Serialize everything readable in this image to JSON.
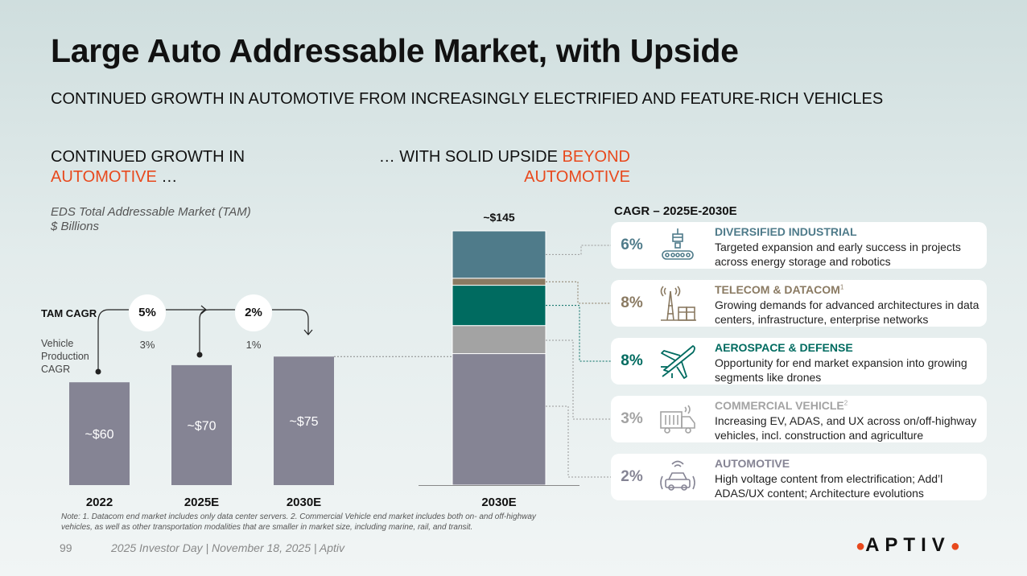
{
  "title": "Large Auto Addressable Market, with Upside",
  "subtitle": "CONTINUED GROWTH IN AUTOMOTIVE FROM INCREASINGLY ELECTRIFIED AND FEATURE-RICH VEHICLES",
  "left_section": {
    "line1": "CONTINUED GROWTH IN",
    "highlight": "AUTOMOTIVE",
    "suffix": " …"
  },
  "right_section": {
    "prefix": "… WITH SOLID UPSIDE ",
    "highlight1": "BEYOND",
    "highlight2": "AUTOMOTIVE"
  },
  "tam_label": {
    "line1": "EDS Total Addressable Market (TAM)",
    "line2": "$ Billions"
  },
  "tam_cagr_label": "TAM CAGR",
  "vehicle_cagr_label": [
    "Vehicle",
    "Production",
    "CAGR"
  ],
  "growth": {
    "tam_cagr": [
      "5%",
      "2%"
    ],
    "vehicle_cagr": [
      "3%",
      "1%"
    ]
  },
  "chart_data": [
    {
      "type": "bar",
      "title": "EDS Total Addressable Market (TAM)",
      "ylabel": "$ Billions",
      "categories": [
        "2022",
        "2025E",
        "2030E"
      ],
      "values": [
        60,
        70,
        75
      ],
      "value_labels": [
        "~$60",
        "~$70",
        "~$75"
      ],
      "ylim": [
        0,
        145
      ]
    },
    {
      "type": "bar",
      "stacked": true,
      "categories": [
        "2030E"
      ],
      "total_label": "~$145",
      "total": 145,
      "series": [
        {
          "name": "Automotive",
          "values": [
            75
          ],
          "color": "#858494"
        },
        {
          "name": "Commercial Vehicle",
          "values": [
            16
          ],
          "color": "#a3a3a3"
        },
        {
          "name": "Aerospace & Defense",
          "values": [
            23
          ],
          "color": "#006b60"
        },
        {
          "name": "Telecom & Datacom",
          "values": [
            4
          ],
          "color": "#8a7a62"
        },
        {
          "name": "Diversified Industrial",
          "values": [
            27
          ],
          "color": "#4f7b8a"
        }
      ]
    }
  ],
  "cagr_header": "CAGR – 2025E-2030E",
  "segments": [
    {
      "name": "DIVERSIFIED INDUSTRIAL",
      "sup": "",
      "pct": "6%",
      "color": "#4f7b8a",
      "icon": "conveyor-robot-icon",
      "desc": "Targeted expansion and early success in projects across energy storage and robotics"
    },
    {
      "name": "TELECOM & DATACOM",
      "sup": "1",
      "pct": "8%",
      "color": "#8a7a62",
      "icon": "cell-tower-icon",
      "desc": "Growing demands for advanced architectures in data centers, infrastructure, enterprise networks"
    },
    {
      "name": "AEROSPACE & DEFENSE",
      "sup": "",
      "pct": "8%",
      "color": "#006b60",
      "icon": "airplane-icon",
      "desc": "Opportunity for end market expansion into growing segments like drones"
    },
    {
      "name": "COMMERCIAL VEHICLE",
      "sup": "2",
      "pct": "3%",
      "color": "#a3a3a3",
      "icon": "truck-icon",
      "desc": "Increasing EV, ADAS, and UX across on/off-highway vehicles, incl. construction and agriculture"
    },
    {
      "name": "AUTOMOTIVE",
      "sup": "",
      "pct": "2%",
      "color": "#858494",
      "icon": "connected-car-icon",
      "desc": "High voltage content from electrification; Add’l ADAS/UX content; Architecture evolutions"
    }
  ],
  "note": "Note: 1. Datacom end market includes only data center servers. 2. Commercial Vehicle end market includes both on- and off-highway vehicles, as well as other transportation modalities that are smaller in market size, including marine, rail, and transit.",
  "page_number": "99",
  "footer": "2025 Investor Day | November 18, 2025 | Aptiv",
  "logo": "APTIV",
  "colors": {
    "accent": "#e8491d",
    "bar": "#858494"
  }
}
